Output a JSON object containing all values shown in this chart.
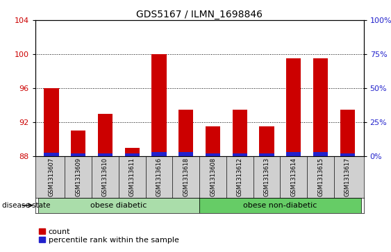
{
  "title": "GDS5167 / ILMN_1698846",
  "samples": [
    "GSM1313607",
    "GSM1313609",
    "GSM1313610",
    "GSM1313611",
    "GSM1313616",
    "GSM1313618",
    "GSM1313608",
    "GSM1313612",
    "GSM1313613",
    "GSM1313614",
    "GSM1313615",
    "GSM1313617"
  ],
  "count_values": [
    96.0,
    91.0,
    93.0,
    89.0,
    100.0,
    93.5,
    91.5,
    93.5,
    91.5,
    99.5,
    99.5,
    93.5
  ],
  "percentile_values": [
    0.4,
    0.3,
    0.3,
    0.3,
    0.5,
    0.5,
    0.3,
    0.3,
    0.3,
    0.5,
    0.5,
    0.3
  ],
  "ylim_left": [
    88,
    104
  ],
  "ylim_right": [
    0,
    100
  ],
  "yticks_left": [
    88,
    92,
    96,
    100,
    104
  ],
  "yticks_right": [
    0,
    25,
    50,
    75,
    100
  ],
  "bar_color": "#cc0000",
  "percentile_color": "#2222cc",
  "bar_width": 0.55,
  "groups": [
    {
      "label": "obese diabetic",
      "start": 0,
      "end": 6,
      "color": "#aaddaa"
    },
    {
      "label": "obese non-diabetic",
      "start": 6,
      "end": 12,
      "color": "#66cc66"
    }
  ],
  "disease_state_label": "disease state",
  "legend_count_label": "count",
  "legend_percentile_label": "percentile rank within the sample",
  "title_fontsize": 10,
  "tick_fontsize": 8,
  "label_fontsize": 8,
  "group_label_fontsize": 8,
  "sample_fontsize": 6
}
